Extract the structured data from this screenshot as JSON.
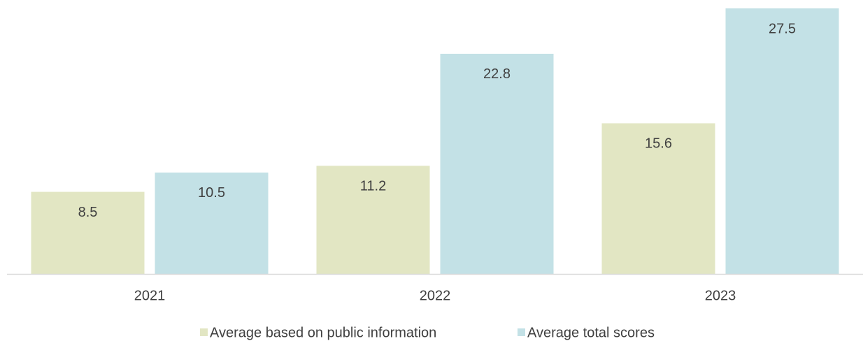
{
  "chart_data": {
    "type": "bar",
    "categories": [
      "2021",
      "2022",
      "2023"
    ],
    "series": [
      {
        "name": "Average based on public information",
        "color": "#e2e6c3",
        "values": [
          8.5,
          11.2,
          15.6
        ]
      },
      {
        "name": "Average total scores",
        "color": "#c3e1e6",
        "values": [
          10.5,
          22.8,
          27.5
        ]
      }
    ]
  }
}
